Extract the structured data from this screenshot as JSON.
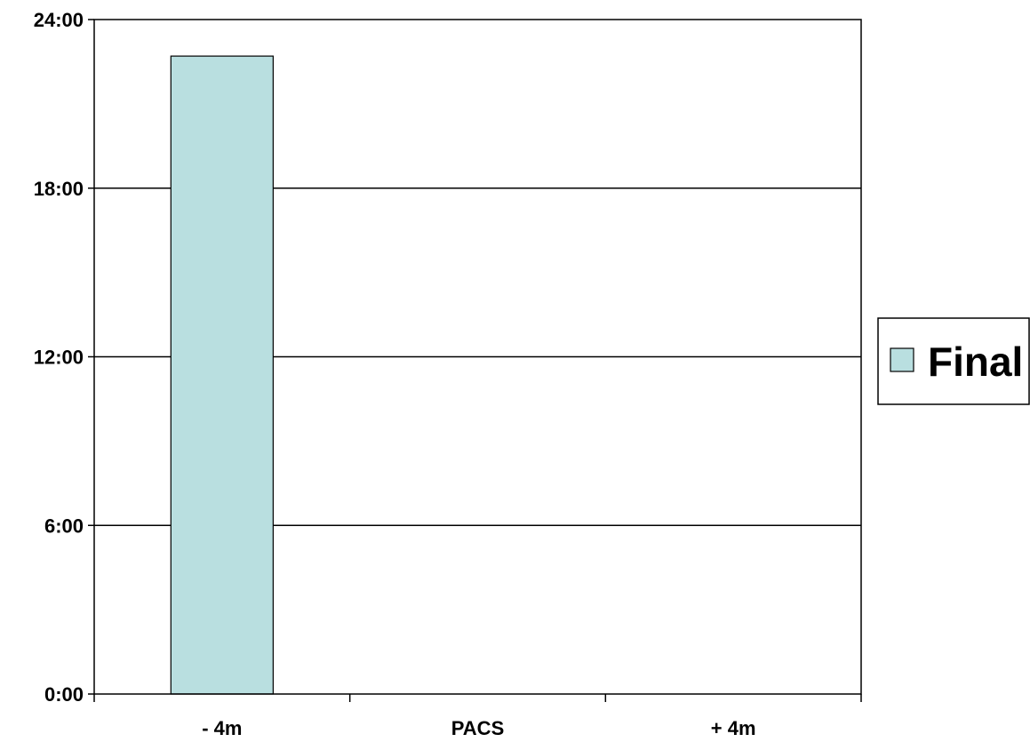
{
  "chart_data": {
    "type": "bar",
    "categories": [
      "- 4m",
      "PACS",
      "+ 4m"
    ],
    "series": [
      {
        "name": "Final",
        "values": [
          22.7,
          null,
          null
        ],
        "color": "#b9dfe0"
      }
    ],
    "y_tick_labels": [
      "0:00",
      "6:00",
      "12:00",
      "18:00",
      "24:00"
    ],
    "y_ticks": [
      0,
      6,
      12,
      18,
      24
    ],
    "ylim": [
      0,
      24
    ],
    "y_unit": "hours",
    "grid": true,
    "legend": {
      "position": "right",
      "entries": [
        "Final"
      ]
    }
  }
}
